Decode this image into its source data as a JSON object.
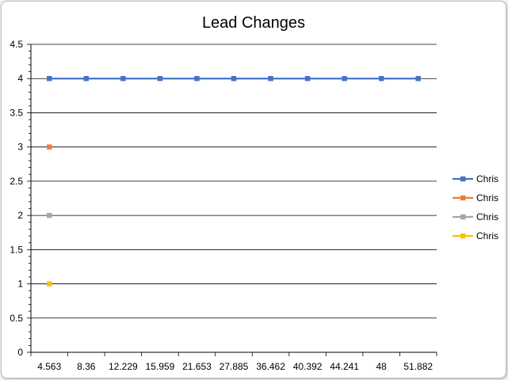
{
  "chart_data": {
    "type": "line",
    "title": "Lead Changes",
    "xlabel": "",
    "ylabel": "",
    "categories": [
      "4.563",
      "8.36",
      "12.229",
      "15.959",
      "21.653",
      "27.885",
      "36.462",
      "40.392",
      "44.241",
      "48",
      "51.882"
    ],
    "ylim": [
      0,
      4.5
    ],
    "y_ticks": [
      "0",
      "0.5",
      "1",
      "1.5",
      "2",
      "2.5",
      "3",
      "3.5",
      "4",
      "4.5"
    ],
    "grid": true,
    "legend_position": "right",
    "series": [
      {
        "name": "Chris",
        "color": "#4472c4",
        "values": [
          4,
          4,
          4,
          4,
          4,
          4,
          4,
          4,
          4,
          4,
          4
        ]
      },
      {
        "name": "Chris",
        "color": "#ed7d31",
        "values": [
          3,
          null,
          null,
          null,
          null,
          null,
          null,
          null,
          null,
          null,
          null
        ]
      },
      {
        "name": "Chris",
        "color": "#a5a5a5",
        "values": [
          2,
          null,
          null,
          null,
          null,
          null,
          null,
          null,
          null,
          null,
          null
        ]
      },
      {
        "name": "Chris",
        "color": "#ffc000",
        "values": [
          1,
          null,
          null,
          null,
          null,
          null,
          null,
          null,
          null,
          null,
          null
        ]
      }
    ]
  }
}
